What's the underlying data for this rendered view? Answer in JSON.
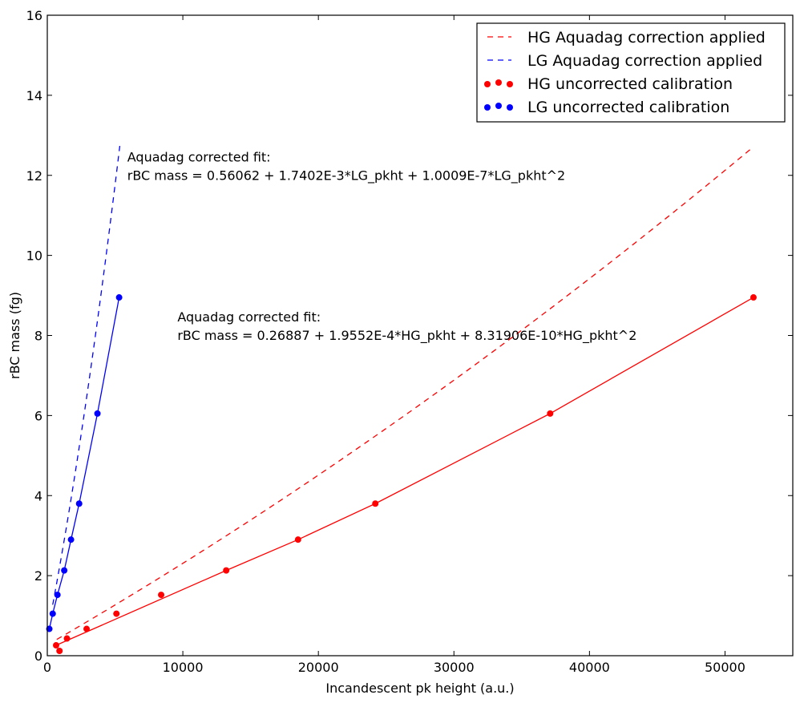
{
  "chart_data": {
    "type": "line",
    "title": "",
    "xlabel": "Incandescent pk height (a.u.)",
    "ylabel": "rBC mass (fg)",
    "xlim": [
      0,
      55000
    ],
    "ylim": [
      0,
      16
    ],
    "xticks": [
      0,
      10000,
      20000,
      30000,
      40000,
      50000
    ],
    "yticks": [
      0,
      2,
      4,
      6,
      8,
      10,
      12,
      14,
      16
    ],
    "grid": false,
    "legend_position": "top-right",
    "series": [
      {
        "name": "HG Aquadag correction applied",
        "style": "dashed",
        "color": "#ff0000",
        "fit": {
          "a0": 0.26887,
          "a1": 0.00019552,
          "a2": 8.31906e-10
        },
        "x_range": [
          700,
          52100
        ]
      },
      {
        "name": "LG Aquadag correction applied",
        "style": "dashed",
        "color": "#0000ff",
        "fit": {
          "a0": 0.56062,
          "a1": 0.0017402,
          "a2": 1.0009e-07
        },
        "x_range": [
          400,
          5350
        ]
      },
      {
        "name": "HG uncorrected calibration",
        "style": "markers",
        "color": "#ff0000",
        "points": [
          {
            "x": 650,
            "y": 0.26
          },
          {
            "x": 900,
            "y": 0.12
          },
          {
            "x": 1450,
            "y": 0.43
          },
          {
            "x": 2900,
            "y": 0.67
          },
          {
            "x": 5100,
            "y": 1.05
          },
          {
            "x": 8400,
            "y": 1.52
          },
          {
            "x": 13200,
            "y": 2.13
          },
          {
            "x": 18500,
            "y": 2.9
          },
          {
            "x": 24200,
            "y": 3.8
          },
          {
            "x": 37100,
            "y": 6.05
          },
          {
            "x": 52100,
            "y": 8.95
          }
        ],
        "line_points": [
          {
            "x": 650,
            "y": 0.26
          },
          {
            "x": 13200,
            "y": 2.13
          },
          {
            "x": 18500,
            "y": 2.9
          },
          {
            "x": 24200,
            "y": 3.8
          },
          {
            "x": 37100,
            "y": 6.05
          },
          {
            "x": 52100,
            "y": 8.95
          }
        ]
      },
      {
        "name": "LG uncorrected calibration",
        "style": "markers",
        "color": "#0000ff",
        "points": [
          {
            "x": 150,
            "y": 0.67
          },
          {
            "x": 400,
            "y": 1.05
          },
          {
            "x": 750,
            "y": 1.52
          },
          {
            "x": 1250,
            "y": 2.13
          },
          {
            "x": 1750,
            "y": 2.9
          },
          {
            "x": 2350,
            "y": 3.8
          },
          {
            "x": 3700,
            "y": 6.05
          },
          {
            "x": 5300,
            "y": 8.95
          }
        ]
      }
    ],
    "annotations": [
      {
        "lines": [
          "Aquadag corrected fit:",
          "rBC mass = 0.56062 + 1.7402E-3*LG_pkht + 1.0009E-7*LG_pkht^2"
        ],
        "x": 5900,
        "y": 12.35
      },
      {
        "lines": [
          "Aquadag corrected fit:",
          "rBC mass = 0.26887 + 1.9552E-4*HG_pkht + 8.31906E-10*HG_pkht^2"
        ],
        "x": 9600,
        "y": 8.35
      }
    ]
  }
}
